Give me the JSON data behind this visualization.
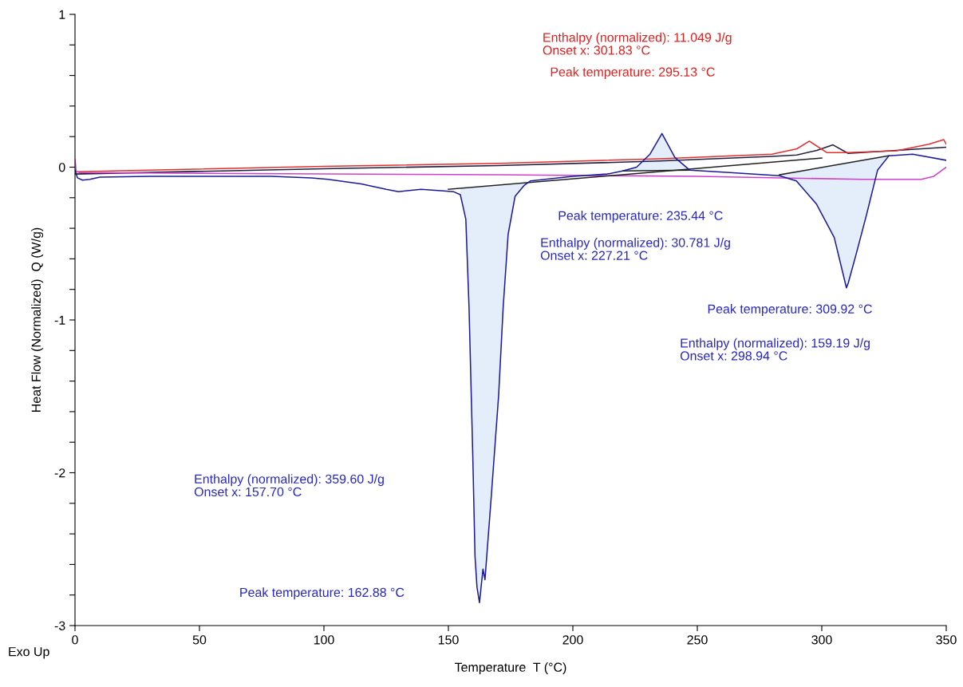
{
  "chart_data": {
    "type": "line",
    "xlabel": "Temperature  T (°C)",
    "ylabel": "Heat Flow (Normalized)  Q (W/g)",
    "xlim": [
      0,
      350
    ],
    "xticks": [
      0,
      50,
      100,
      150,
      200,
      250,
      300,
      350
    ],
    "ylim": [
      -3,
      1
    ],
    "yticks": [
      -3,
      {
        "value": -2.8,
        "label": null
      },
      {
        "value": -2.6,
        "label": null
      },
      {
        "value": -2.4,
        "label": null
      },
      {
        "value": -2.2,
        "label": null
      },
      -2,
      {
        "value": -1.8,
        "label": null
      },
      {
        "value": -1.6,
        "label": null
      },
      {
        "value": -1.4,
        "label": null
      },
      {
        "value": -1.2,
        "label": null
      },
      -1,
      {
        "value": -0.8,
        "label": null
      },
      {
        "value": -0.6,
        "label": null
      },
      {
        "value": -0.4,
        "label": null
      },
      {
        "value": -0.2,
        "label": null
      },
      0,
      {
        "value": 0.2,
        "label": null
      },
      {
        "value": 0.4,
        "label": null
      },
      {
        "value": 0.6,
        "label": null
      },
      {
        "value": 0.8,
        "label": null
      },
      1
    ],
    "grid": false,
    "marker": "none",
    "line_style": "solid",
    "series": [
      {
        "color": "#202040",
        "x": [
          0,
          100,
          170,
          235,
          280,
          290,
          298,
          304.5,
          310.6,
          330,
          350
        ],
        "values": [
          -0.045,
          -0.01,
          0.01,
          0.04,
          0.07,
          0.08,
          0.11,
          0.146,
          0.09,
          0.11,
          0.13
        ]
      },
      {
        "color": "#e03030",
        "x": [
          0,
          100,
          170,
          235,
          280,
          290,
          295,
          302,
          310,
          330,
          343,
          349,
          350
        ],
        "values": [
          -0.03,
          0.005,
          0.025,
          0.055,
          0.085,
          0.12,
          0.17,
          0.096,
          0.095,
          0.107,
          0.15,
          0.18,
          0.15
        ]
      },
      {
        "color": "#d040d0",
        "x": [
          0,
          0.5,
          2,
          50,
          170,
          250,
          316,
          340,
          345,
          350
        ],
        "values": [
          0.05,
          -0.03,
          -0.035,
          -0.04,
          -0.05,
          -0.06,
          -0.08,
          -0.08,
          -0.06,
          0.0
        ]
      },
      {
        "color": "#202020",
        "x": [
          150,
          300
        ],
        "values": [
          -0.145,
          0.06
        ]
      },
      {
        "color": "#202020",
        "x": [
          220,
          247
        ],
        "values": [
          -0.025,
          -0.02
        ]
      },
      {
        "color": "#202020",
        "x": [
          283,
          327
        ],
        "values": [
          -0.05,
          0.075
        ]
      },
      {
        "color": "#1a1a9a",
        "x": [
          0,
          1,
          3,
          6,
          10,
          30,
          79,
          95,
          101.6,
          115,
          125,
          130,
          139,
          148,
          152,
          154.8,
          157,
          158.3,
          159.8,
          160.7,
          161.5,
          162.5,
          163.9,
          164.7,
          167.3,
          170.2,
          172,
          174,
          176.8,
          180.4,
          183,
          200,
          213.8,
          220,
          225.6,
          231,
          235.8,
          241,
          247,
          263,
          283,
          289.8,
          297.8,
          305,
          309.9,
          310.6,
          313.8,
          318,
          322.4,
          327,
          336.5,
          350
        ],
        "values": [
          -0.02,
          -0.07,
          -0.085,
          -0.08,
          -0.065,
          -0.06,
          -0.06,
          -0.07,
          -0.08,
          -0.11,
          -0.145,
          -0.16,
          -0.145,
          -0.155,
          -0.16,
          -0.18,
          -0.34,
          -0.92,
          -1.89,
          -2.55,
          -2.75,
          -2.85,
          -2.63,
          -2.7,
          -2.14,
          -1.49,
          -0.92,
          -0.44,
          -0.19,
          -0.12,
          -0.09,
          -0.06,
          -0.045,
          -0.025,
          0.0,
          0.085,
          0.22,
          0.063,
          -0.02,
          -0.035,
          -0.056,
          -0.09,
          -0.24,
          -0.46,
          -0.79,
          -0.76,
          -0.57,
          -0.31,
          -0.02,
          0.075,
          0.085,
          0.045
        ],
        "lower": [
          null,
          null,
          null,
          null,
          null,
          null,
          null,
          null,
          null,
          null,
          null,
          null,
          null,
          null,
          null,
          -0.18,
          -0.34,
          -0.92,
          -1.89,
          -2.55,
          -2.75,
          -2.85,
          -2.63,
          -2.7,
          -2.14,
          -1.49,
          -0.92,
          -0.44,
          -0.19,
          -0.12,
          null,
          null,
          null,
          -0.025,
          -0.024,
          -0.023,
          -0.022,
          -0.021,
          -0.02,
          null,
          -0.056,
          -0.09,
          -0.24,
          -0.46,
          -0.79,
          -0.76,
          -0.57,
          -0.31,
          -0.02,
          0.075,
          null,
          null
        ],
        "upper": [
          null,
          null,
          null,
          null,
          null,
          null,
          null,
          null,
          null,
          null,
          null,
          null,
          null,
          null,
          null,
          -0.138,
          -0.135,
          -0.134,
          -0.132,
          -0.13,
          -0.129,
          -0.128,
          -0.126,
          -0.125,
          -0.121,
          -0.117,
          -0.115,
          -0.112,
          -0.108,
          -0.103,
          null,
          null,
          null,
          -0.025,
          0.0,
          0.085,
          0.22,
          0.063,
          -0.02,
          null,
          -0.05,
          -0.031,
          -0.008,
          0.0125,
          0.026,
          0.028,
          0.037,
          0.049,
          0.062,
          0.075,
          null,
          null
        ]
      }
    ],
    "annotations": [
      "Enthalpy (normalized): 11.049 J/g\nOnset x: 301.83 °C",
      " Peak temperature: 295.13 °C",
      "Peak temperature: 235.44 °C",
      "Enthalpy (normalized): 30.781 J/g\nOnset x: 227.21 °C",
      "Peak temperature: 309.92 °C",
      "Enthalpy (normalized): 159.19 J/g\nOnset x: 298.94 °C",
      "Enthalpy (normalized): 359.60 J/g\nOnset x: 157.70 °C",
      "Peak temperature: 162.88 °C",
      "Exo Up"
    ]
  }
}
